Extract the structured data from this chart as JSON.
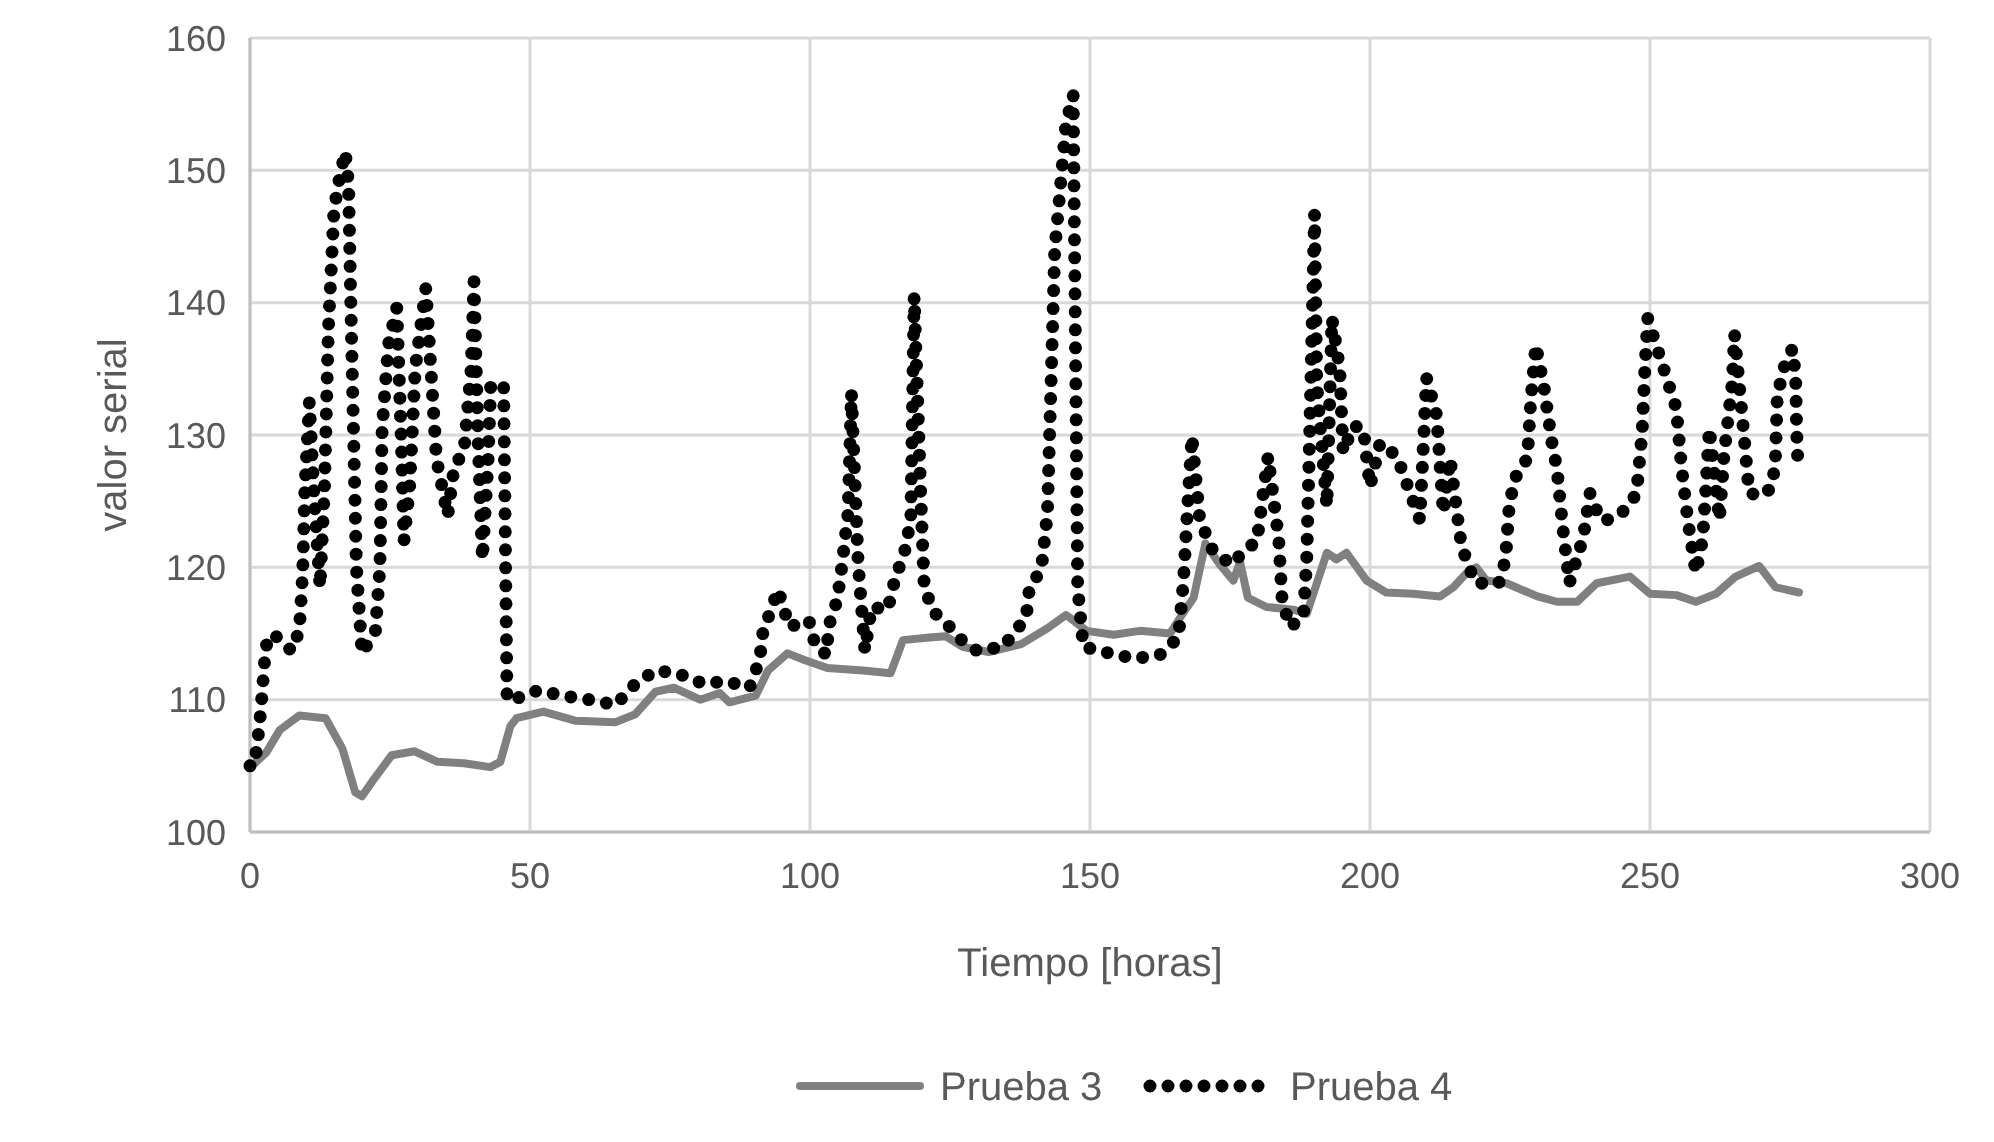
{
  "chart_data": {
    "type": "line",
    "xlabel": "Tiempo [horas]",
    "ylabel": "valor serial",
    "xlim": [
      0,
      300
    ],
    "xticks": [
      0,
      50,
      100,
      150,
      200,
      250,
      300
    ],
    "ylim": [
      100,
      160
    ],
    "yticks": [
      100,
      110,
      120,
      130,
      140,
      150,
      160
    ],
    "grid": true,
    "legend": "bottom",
    "series": [
      {
        "name": "Prueba 3",
        "color": "#808080",
        "line_style": "solid",
        "x": [
          0,
          0.6,
          2.9,
          5.3,
          8.8,
          13.5,
          16.5,
          18.8,
          20,
          21.8,
          25.3,
          29.4,
          33.5,
          38.2,
          42.9,
          44.7,
          46.5,
          47.6,
          52.4,
          58.2,
          65.3,
          68.8,
          72.4,
          75.7,
          80.4,
          83.9,
          85.6,
          90.3,
          92.5,
          96,
          99,
          103.1,
          109.5,
          114.4,
          116.6,
          121.3,
          124.2,
          127.2,
          131.9,
          137.7,
          142.4,
          145.7,
          147,
          149.4,
          154.2,
          158.9,
          164.3,
          166.1,
          168.5,
          170.6,
          173.2,
          175.6,
          176.8,
          178.2,
          181.5,
          186.3,
          188.7,
          192.3,
          194,
          195.8,
          199.4,
          202.9,
          207.7,
          212.5,
          214.9,
          217.3,
          219,
          220.8,
          224.4,
          229.9,
          233.4,
          237,
          240.5,
          246.4,
          250,
          254.7,
          258.2,
          261.8,
          265.3,
          269.5,
          272.4,
          276.6
        ],
        "values": [
          105.2,
          105.1,
          106,
          107.7,
          108.8,
          108.6,
          106.3,
          103,
          102.7,
          103.8,
          105.8,
          106.1,
          105.3,
          105.2,
          104.9,
          105.3,
          108,
          108.6,
          109.1,
          108.4,
          108.3,
          108.9,
          110.6,
          110.9,
          110,
          110.5,
          109.8,
          110.3,
          112.2,
          113.5,
          113,
          112.4,
          112.2,
          112,
          114.5,
          114.7,
          114.8,
          114,
          113.6,
          114.2,
          115.4,
          116.4,
          116,
          115.2,
          114.9,
          115.2,
          115,
          116.2,
          117.7,
          121.8,
          120.2,
          119,
          120.4,
          117.7,
          117,
          116.8,
          116.5,
          121.1,
          120.6,
          121.1,
          119,
          118.1,
          118,
          117.8,
          118.5,
          119.6,
          120,
          119,
          118.8,
          117.8,
          117.4,
          117.4,
          118.8,
          119.3,
          118,
          117.9,
          117.4,
          118,
          119.3,
          120.1,
          118.5,
          118.1
        ]
      },
      {
        "name": "Prueba 4",
        "color": "#000000",
        "line_style": "dotted",
        "x": [
          0,
          0.8,
          1.5,
          2,
          2.4,
          2.8,
          4.1,
          7.4,
          8.8,
          9.4,
          9.8,
          10.6,
          11.5,
          12.5,
          13.3,
          14,
          15,
          16,
          17,
          17.6,
          18,
          18.5,
          19,
          20,
          22.4,
          23.2,
          23.6,
          24.7,
          26.2,
          27,
          27.5,
          28.5,
          29.5,
          31.4,
          33.3,
          35.3,
          36.5,
          38.2,
          39.5,
          40,
          40.7,
          41.5,
          42.5,
          43,
          45.3,
          45.6,
          45.9,
          47,
          51.4,
          55.9,
          60.6,
          65.3,
          68.8,
          72.4,
          76.3,
          81,
          85,
          89.2,
          91,
          91.6,
          94.3,
          96.3,
          99.8,
          101,
          103,
          103.3,
          104.9,
          105.6,
          106.8,
          107.4,
          108.6,
          109.8,
          111,
          113.9,
          115.1,
          116.9,
          118,
          118.6,
          119.8,
          120.4,
          122.1,
          123.9,
          126.8,
          129.8,
          134.5,
          138.6,
          139.2,
          141.3,
          142.4,
          143.7,
          145.7,
          147,
          147.8,
          148.8,
          153.6,
          158,
          162.5,
          165.8,
          166.7,
          167.3,
          168.2,
          169.6,
          172,
          175.4,
          177.7,
          179.8,
          181.8,
          183.7,
          184.3,
          185.7,
          188.1,
          188.7,
          189.3,
          190.1,
          190.5,
          192.3,
          193.2,
          194.6,
          195.2,
          197,
          198.8,
          200,
          201.8,
          204.8,
          206.5,
          208.9,
          210.1,
          211.9,
          213.1,
          214.3,
          216.1,
          217.3,
          219,
          223,
          224.2,
          224.9,
          226.3,
          228.1,
          228.7,
          229.6,
          231,
          232.5,
          233.4,
          234.4,
          235.6,
          238.1,
          239.3,
          241.1,
          242.9,
          245.8,
          247.6,
          248.6,
          249,
          249.6,
          254.7,
          255.6,
          256.8,
          258.2,
          259.4,
          260,
          260.6,
          262.4,
          263.2,
          264.7,
          265.1,
          266.8,
          267.7,
          270.1,
          271.8,
          272.4,
          272.7,
          273.6,
          275.4,
          276,
          276.2,
          276.4
        ],
        "values": [
          105,
          105,
          107.4,
          109.5,
          111.8,
          114,
          115,
          113.7,
          115.2,
          119.5,
          126,
          132.5,
          125,
          118.5,
          126,
          138,
          147,
          149.5,
          151.4,
          149,
          140,
          130,
          120,
          113.5,
          115.2,
          120,
          130.5,
          136.8,
          139.6,
          130,
          122,
          126,
          135,
          141.1,
          128.2,
          123.9,
          127.7,
          128.7,
          135,
          141.6,
          130,
          120.6,
          128,
          133.9,
          133.6,
          122,
          110,
          110,
          110.7,
          110.3,
          110,
          109.6,
          111.2,
          112.2,
          112,
          111.2,
          111.4,
          110.9,
          113,
          115.1,
          118.3,
          115.5,
          116,
          114,
          113.4,
          115.5,
          117.6,
          119.8,
          124.1,
          133.2,
          120.3,
          113.7,
          117,
          116.8,
          119,
          121.2,
          123.6,
          140.5,
          125.1,
          118.5,
          116.6,
          116,
          114.6,
          113.7,
          114,
          116.2,
          118.5,
          119.8,
          124.1,
          143.9,
          153.5,
          155.7,
          118.5,
          114,
          113.5,
          113.1,
          113.4,
          114.7,
          119,
          123.6,
          129.9,
          123.6,
          121.2,
          120.2,
          121.4,
          121.9,
          128.4,
          122.1,
          117.6,
          115.5,
          116.2,
          120.6,
          131.2,
          146.7,
          133.8,
          124.6,
          138.8,
          135,
          128.7,
          130.7,
          130.5,
          126.1,
          129.4,
          128.4,
          126.4,
          123.6,
          134.3,
          131.5,
          124.1,
          128.2,
          122.3,
          120.3,
          118.8,
          118.8,
          120.6,
          124.9,
          127.2,
          128.2,
          132.5,
          136.8,
          133.8,
          129.4,
          127.4,
          123.1,
          118.8,
          122.3,
          125.6,
          123.6,
          123.6,
          124.4,
          125.6,
          130.2,
          134.3,
          138.8,
          132,
          127.7,
          123.4,
          119.6,
          122.1,
          126.1,
          130.5,
          123.6,
          128.4,
          134,
          137.6,
          129.9,
          125.6,
          125.4,
          126.1,
          128.2,
          132.5,
          134.8,
          136.5,
          134.5,
          130.2,
          127.9
        ]
      }
    ]
  }
}
